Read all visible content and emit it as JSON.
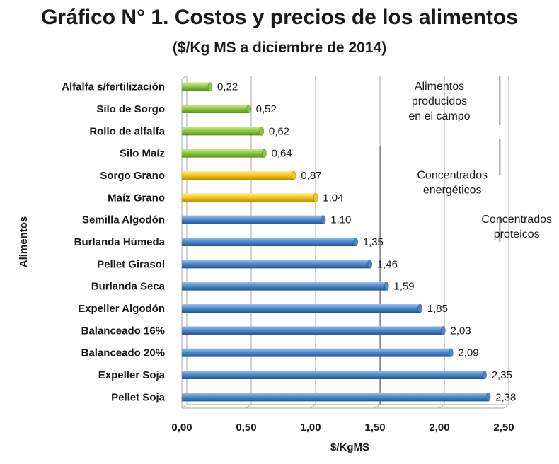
{
  "chart_data": {
    "type": "bar",
    "orientation": "horizontal",
    "title": "Gráfico N° 1. Costos y precios de los alimentos",
    "subtitle": "($/Kg MS a diciembre de 2014)",
    "xlabel": "$/KgMS",
    "ylabel": "Alimentos",
    "xlim": [
      0,
      2.5
    ],
    "xticks": [
      "0,00",
      "0,50",
      "1,00",
      "1,50",
      "2,00",
      "2,50"
    ],
    "grid": "vertical",
    "categories": [
      "Alfalfa s/fertilización",
      "Silo de Sorgo",
      "Rollo de alfalfa",
      "Silo Maíz",
      "Sorgo Grano",
      "Maíz Grano",
      "Semilla Algodón",
      "Burlanda Húmeda",
      "Pellet Girasol",
      "Burlanda Seca",
      "Expeller Algodón",
      "Balanceado 16%",
      "Balanceado 20%",
      "Expeller Soja",
      "Pellet Soja"
    ],
    "values": [
      0.22,
      0.52,
      0.62,
      0.64,
      0.87,
      1.04,
      1.1,
      1.35,
      1.46,
      1.59,
      1.85,
      2.03,
      2.09,
      2.35,
      2.38
    ],
    "value_labels": [
      "0,22",
      "0,52",
      "0,62",
      "0,64",
      "0,87",
      "1,04",
      "1,10",
      "1,35",
      "1,46",
      "1,59",
      "1,85",
      "2,03",
      "2,09",
      "2,35",
      "2,38"
    ],
    "bar_groups": [
      "campo",
      "campo",
      "campo",
      "campo",
      "energeticos",
      "energeticos",
      "proteicos",
      "proteicos",
      "proteicos",
      "proteicos",
      "proteicos",
      "proteicos",
      "proteicos",
      "proteicos",
      "proteicos"
    ],
    "colors": {
      "campo": "#8cc63f",
      "energeticos": "#f5c518",
      "proteicos": "#4a86c8"
    },
    "annotations": [
      {
        "lines": [
          "Alimentos",
          "producidos",
          "en el campo"
        ],
        "group": "campo",
        "x": 2.0
      },
      {
        "lines": [
          "Concentrados",
          "energéticos"
        ],
        "group": "energeticos",
        "x": 2.1
      },
      {
        "lines": [
          "Concentrados",
          "proteicos"
        ],
        "group": "proteicos",
        "x": 2.6
      }
    ]
  }
}
